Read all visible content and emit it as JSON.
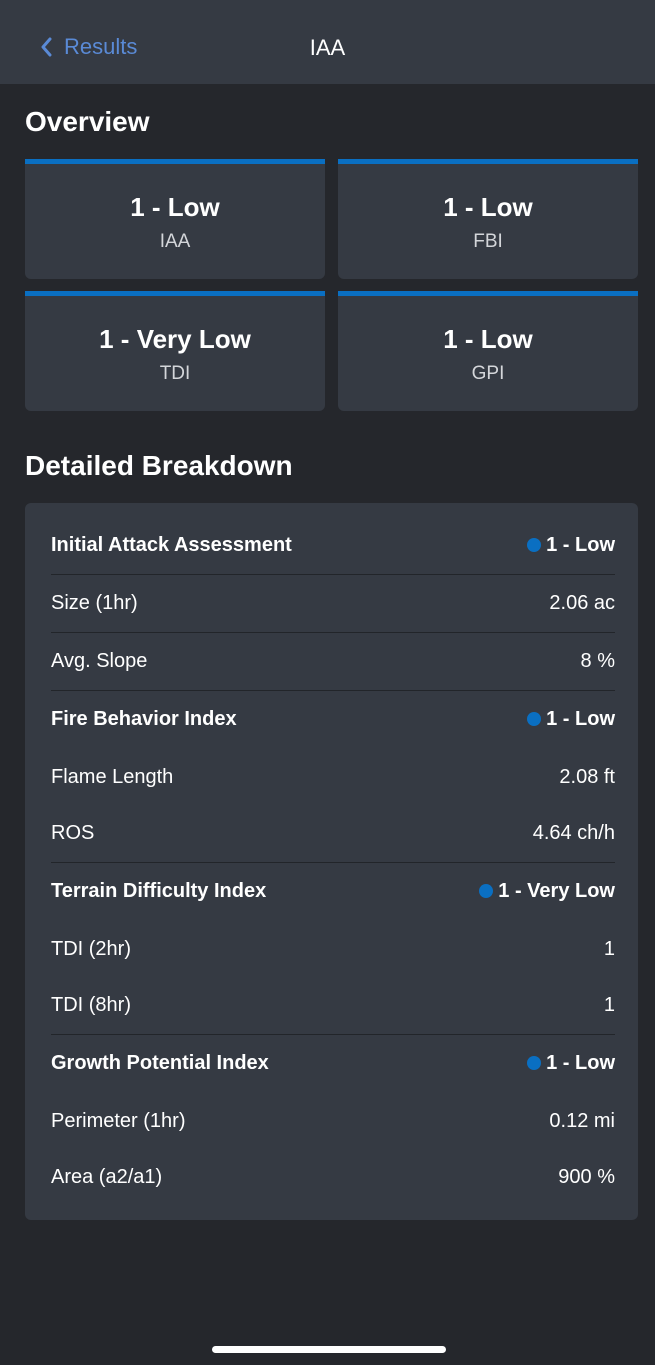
{
  "nav": {
    "back_label": "Results",
    "title": "IAA"
  },
  "overview": {
    "title": "Overview",
    "cards": [
      {
        "value": "1 - Low",
        "label": "IAA"
      },
      {
        "value": "1 - Low",
        "label": "FBI"
      },
      {
        "value": "1 - Very Low",
        "label": "TDI"
      },
      {
        "value": "1 - Low",
        "label": "GPI"
      }
    ]
  },
  "breakdown": {
    "title": "Detailed Breakdown",
    "rows": [
      {
        "label": "Initial Attack Assessment",
        "value": "1 - Low"
      },
      {
        "label": "Size (1hr)",
        "value": "2.06 ac"
      },
      {
        "label": "Avg. Slope",
        "value": "8 %"
      },
      {
        "label": "Fire Behavior Index",
        "value": "1 - Low"
      },
      {
        "label": "Flame Length",
        "value": "2.08 ft"
      },
      {
        "label": "ROS",
        "value": "4.64 ch/h"
      },
      {
        "label": "Terrain Difficulty Index",
        "value": "1 - Very Low"
      },
      {
        "label": "TDI (2hr)",
        "value": "1"
      },
      {
        "label": "TDI (8hr)",
        "value": "1"
      },
      {
        "label": "Growth Potential Index",
        "value": "1 - Low"
      },
      {
        "label": "Perimeter (1hr)",
        "value": "0.12 mi"
      },
      {
        "label": "Area (a2/a1)",
        "value": "900 %"
      }
    ]
  },
  "colors": {
    "accent": "#0a6fc2",
    "link": "#5a8ad6",
    "background": "#25272c",
    "surface": "#353a43"
  }
}
